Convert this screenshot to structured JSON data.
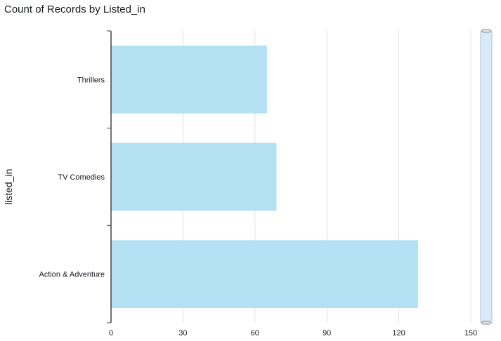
{
  "title": "Count of Records by Listed_in",
  "colors": {
    "bar": "#b3e0f2",
    "grid": "#e0e0e0",
    "axis": "#444444",
    "scrollbar": "#dbeaf8"
  },
  "chart_data": {
    "type": "bar",
    "orientation": "horizontal",
    "title": "Count of Records by Listed_in",
    "ylabel": "listed_in",
    "xlabel": "",
    "categories": [
      "Thrillers",
      "TV Comedies",
      "Action & Adventure"
    ],
    "values": [
      65,
      69,
      128
    ],
    "xlim": [
      0,
      150
    ],
    "xticks": [
      "0",
      "30",
      "60",
      "90",
      "120",
      "150"
    ],
    "grid": true
  }
}
